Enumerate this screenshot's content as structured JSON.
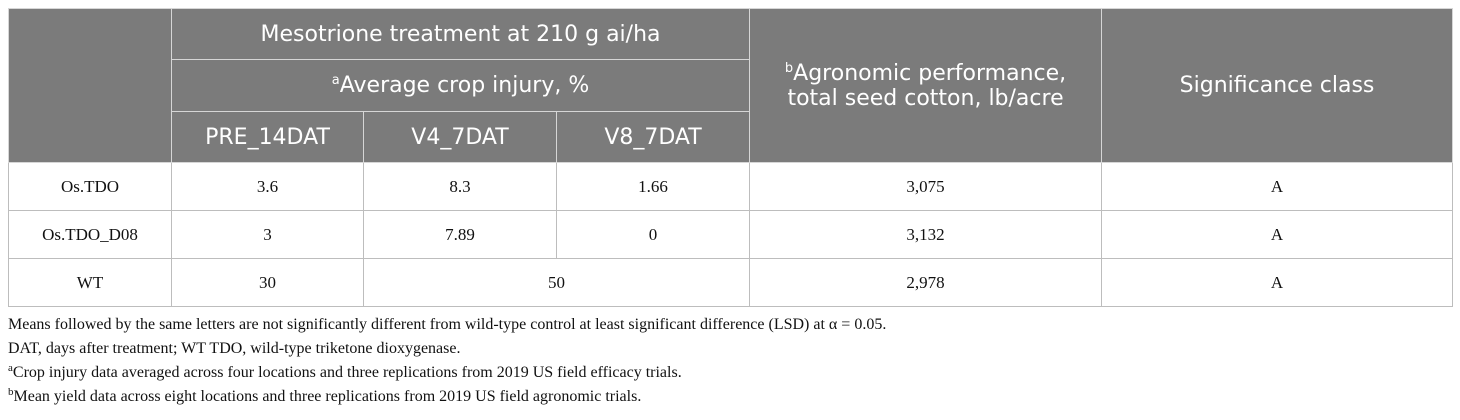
{
  "table": {
    "header": {
      "group_title": "Mesotrione treatment at 210 g ai/ha",
      "injury_sup": "a",
      "injury_title": "Average crop injury, %",
      "sub_columns": [
        "PRE_14DAT",
        "V4_7DAT",
        "V8_7DAT"
      ],
      "yield_sup": "b",
      "yield_title_line1": "Agronomic performance,",
      "yield_title_line2": "total seed cotton, lb/acre",
      "significance_title": "Significance class"
    },
    "rows": [
      {
        "name": "Os.TDO",
        "pre": "3.6",
        "v4": "8.3",
        "v8": "1.66",
        "yield": "3,075",
        "sig": "A"
      },
      {
        "name": "Os.TDO_D08",
        "pre": "3",
        "v4": "7.89",
        "v8": "0",
        "yield": "3,132",
        "sig": "A"
      },
      {
        "name": "WT",
        "pre": "30",
        "v4v8": "50",
        "yield": "2,978",
        "sig": "A"
      }
    ]
  },
  "footnotes": {
    "means": "Means followed by the same letters are not significantly different from wild-type control at least significant difference (LSD) at α = 0.05.",
    "abbrev": "DAT, days after treatment; WT TDO, wild-type triketone dioxygenase.",
    "a_mark": "a",
    "a_text": "Crop injury data averaged across four locations and three replications from 2019 US field efficacy trials.",
    "b_mark": "b",
    "b_text": "Mean yield data across eight locations and three replications from 2019 US field agronomic trials."
  }
}
